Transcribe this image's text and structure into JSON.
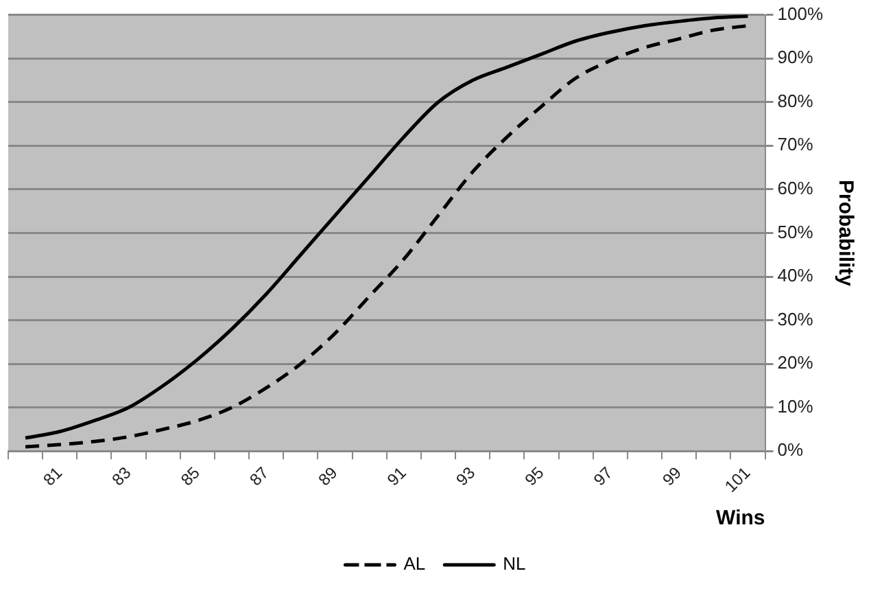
{
  "chart_data": {
    "type": "line",
    "xlabel": "Wins",
    "ylabel": "Probability",
    "categories": [
      null,
      "81",
      null,
      "83",
      null,
      "85",
      null,
      "87",
      null,
      "89",
      null,
      "91",
      null,
      "93",
      null,
      "95",
      null,
      "97",
      null,
      "99",
      null,
      "101"
    ],
    "series": [
      {
        "name": "AL",
        "color": "#000000",
        "line_style": "dashed",
        "values": [
          1,
          1.5,
          2.2,
          3.3,
          5,
          7,
          10,
          14.5,
          20,
          27,
          35.5,
          44,
          54,
          64,
          72,
          79,
          85.5,
          89.5,
          92.5,
          94.5,
          96.5,
          97.5
        ]
      },
      {
        "name": "NL",
        "color": "#000000",
        "line_style": "solid",
        "values": [
          3,
          4.5,
          7,
          10,
          15,
          21,
          28,
          36,
          45,
          54,
          63,
          72,
          80,
          85,
          88,
          91,
          94,
          96,
          97.5,
          98.5,
          99.3,
          99.7
        ]
      }
    ],
    "ylim": [
      0,
      100
    ],
    "yticks": [
      {
        "value": 0,
        "label": "0%"
      },
      {
        "value": 10,
        "label": "10%"
      },
      {
        "value": 20,
        "label": "20%"
      },
      {
        "value": 30,
        "label": "30%"
      },
      {
        "value": 40,
        "label": "40%"
      },
      {
        "value": 50,
        "label": "50%"
      },
      {
        "value": 60,
        "label": "60%"
      },
      {
        "value": 70,
        "label": "70%"
      },
      {
        "value": 80,
        "label": "80%"
      },
      {
        "value": 90,
        "label": "90%"
      },
      {
        "value": 100,
        "label": "100%"
      }
    ],
    "grid": "y",
    "legend": "bottom",
    "marker": "none"
  }
}
